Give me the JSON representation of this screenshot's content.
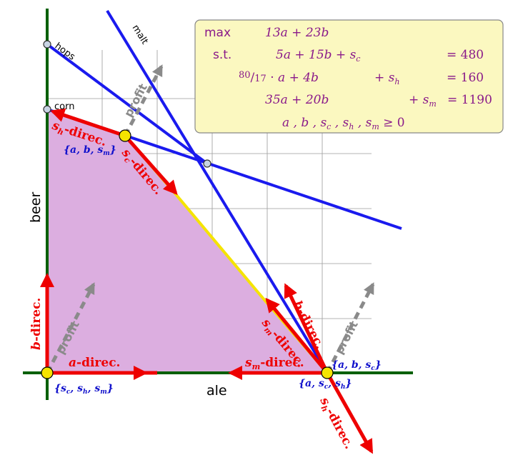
{
  "axes": {
    "x_label": "ale",
    "y_label": "beer"
  },
  "constraints": {
    "hops": "hops",
    "corn": "corn",
    "malt": "malt"
  },
  "lp_box": {
    "objective_keyword": "max",
    "objective": "13a + 23b",
    "st_keyword": "s.t.",
    "rows": [
      {
        "lhs": "5a + 15b + s",
        "sub": "c",
        "rhs": "= 480"
      },
      {
        "lhs": "80/17 · a +   4b          + s",
        "sub": "h",
        "rhs": "= 160"
      },
      {
        "lhs": "35a + 20b                  + s",
        "sub": "m",
        "rhs": "= 1190"
      },
      {
        "lhs": "a ,      b  ,  s",
        "sub": "c",
        "tail": " ,  s",
        "sub2": "h",
        "tail2": " ,  s",
        "sub3": "m",
        "rhs": "≥ 0"
      }
    ]
  },
  "profit_label": "profit",
  "direction_labels": {
    "sh_top": "sh-direc.",
    "sc_top": "sc-direc.",
    "b_left": "b-direc.",
    "a_bottom": "a-direc.",
    "sm_right": "sm-direc.",
    "sm_bottom": "sm-direc.",
    "b_right": "b-direc.",
    "sh_bottom": "sh-direc."
  },
  "basis_labels": {
    "top_vertex": "{a, b, sm}",
    "origin": "{sc, sh, sm}",
    "right_vertex_a": "{a, b, sc}",
    "right_vertex_b": "{a, sc, sh}"
  },
  "colors": {
    "region": "#dcaee0",
    "constraint": "#1a1aee",
    "direction": "#ee0000",
    "feasible_edge": "#f5e400",
    "axis": "#006000",
    "box_fill": "#fbf8c0",
    "box_text": "#8a1a8a",
    "basis_text": "#1010cc",
    "profit_arrow": "#8a8a8a"
  }
}
